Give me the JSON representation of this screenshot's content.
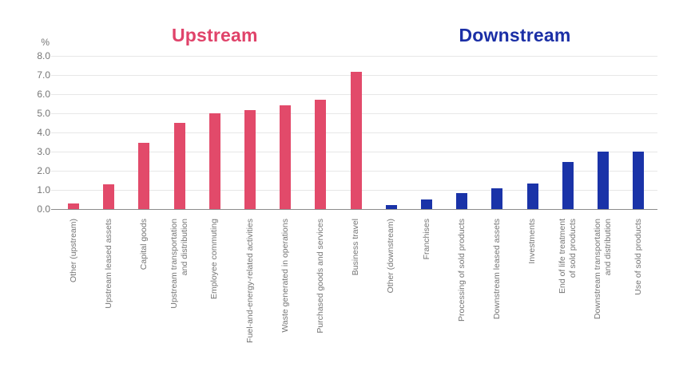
{
  "page": {
    "background": "#ffffff"
  },
  "chart_data": {
    "type": "bar",
    "unit_label": "%",
    "ylim": [
      0,
      8
    ],
    "ytick_step": 1.0,
    "ytick_labels": [
      "0.0",
      "1.0",
      "2.0",
      "3.0",
      "4.0",
      "5.0",
      "6.0",
      "7.0",
      "8.0"
    ],
    "grid": true,
    "gridline_color": "#e7e7e7",
    "axis_line_color": "#8c8c8c",
    "tick_text_color": "#757575",
    "label_text_color": "#757575",
    "groups": [
      {
        "name": "Upstream",
        "title_color": "#e0436a",
        "bar_color": "#e24a6a",
        "categories": [
          [
            "Other (upstream)"
          ],
          [
            "Upstream leased assets"
          ],
          [
            "Capital goods"
          ],
          [
            "Upstream transportation",
            "and distribution"
          ],
          [
            "Employee commuting"
          ],
          [
            "Fuel-and-energy-related activities"
          ],
          [
            "Waste generated in operations"
          ],
          [
            "Purchased goods and services"
          ],
          [
            "Business travel"
          ]
        ],
        "values": [
          0.3,
          1.3,
          3.45,
          4.5,
          5.0,
          5.15,
          5.4,
          5.7,
          7.15
        ]
      },
      {
        "name": "Downstream",
        "title_color": "#1b2fa6",
        "bar_color": "#1a33a8",
        "categories": [
          [
            "Other (downstream)"
          ],
          [
            "Franchises"
          ],
          [
            "Processing of sold products"
          ],
          [
            "Downstream leased assets"
          ],
          [
            "Investments"
          ],
          [
            "End of life treatment",
            "of sold products"
          ],
          [
            "Downstream transportation",
            "and distribution"
          ],
          [
            "Use of sold products"
          ]
        ],
        "values": [
          0.2,
          0.5,
          0.85,
          1.1,
          1.35,
          2.45,
          3.0,
          3.0
        ]
      }
    ]
  }
}
